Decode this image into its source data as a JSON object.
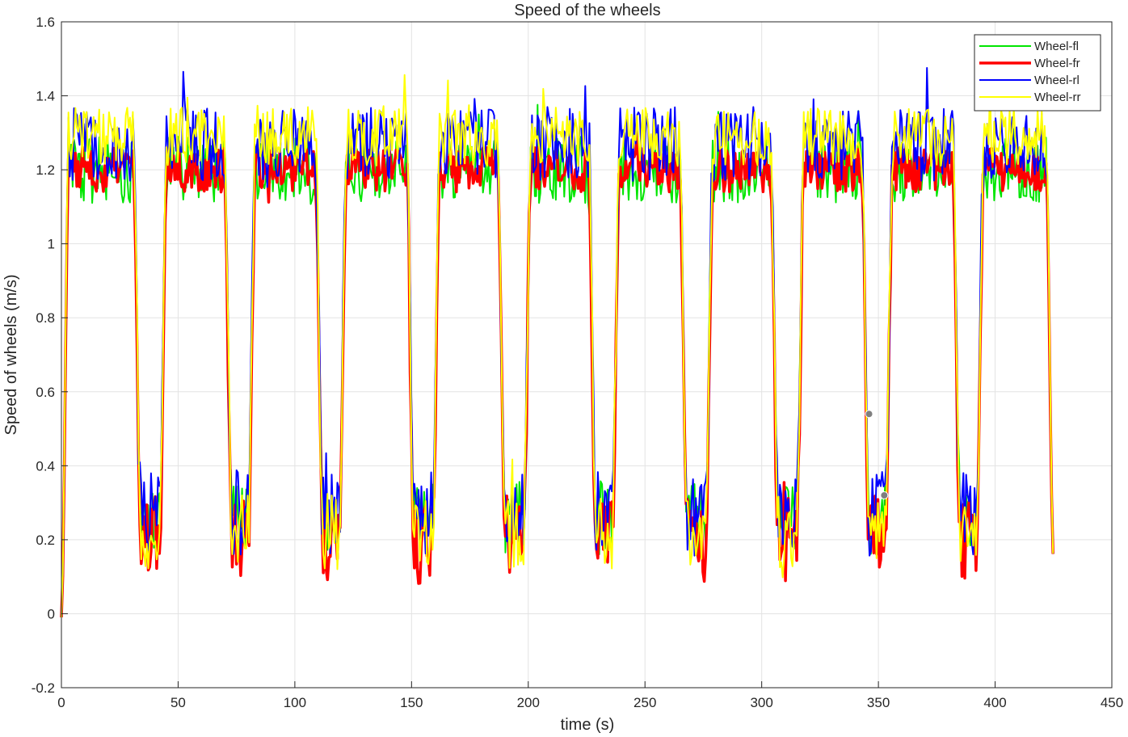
{
  "chart_data": {
    "type": "line",
    "title": "Speed of the wheels",
    "xlabel": "time (s)",
    "ylabel": "Speed of wheels (m/s)",
    "xlim": [
      0,
      450
    ],
    "ylim": [
      -0.2,
      1.6
    ],
    "xticks": [
      0,
      50,
      100,
      150,
      200,
      250,
      300,
      350,
      400,
      450
    ],
    "yticks": [
      -0.2,
      0,
      0.2,
      0.4,
      0.6,
      0.8,
      1,
      1.2,
      1.4,
      1.6
    ],
    "grid": true,
    "legend_position": "top-right",
    "series": [
      {
        "name": "Wheel-fl",
        "color": "#00e600",
        "line_width": 2,
        "high_level": 1.2,
        "low_level": 0.26,
        "high_spread": 0.09,
        "low_spread": 0.1
      },
      {
        "name": "Wheel-fr",
        "color": "#ff0000",
        "line_width": 3.5,
        "high_level": 1.2,
        "low_level": 0.2,
        "high_spread": 0.06,
        "low_spread": 0.12
      },
      {
        "name": "Wheel-rl",
        "color": "#0000ff",
        "line_width": 2,
        "high_level": 1.27,
        "low_level": 0.27,
        "high_spread": 0.1,
        "low_spread": 0.12
      },
      {
        "name": "Wheel-rr",
        "color": "#ffff00",
        "line_width": 2,
        "high_level": 1.29,
        "low_level": 0.22,
        "high_spread": 0.08,
        "low_spread": 0.1
      }
    ],
    "profile": {
      "start": 0,
      "end": 425,
      "time_step": 0.6,
      "start_value": -0.01,
      "end_value": 0.15,
      "low_windows": [
        [
          34,
          42
        ],
        [
          73,
          80
        ],
        [
          112,
          119
        ],
        [
          151,
          159
        ],
        [
          190,
          198
        ],
        [
          229,
          236
        ],
        [
          268,
          276
        ],
        [
          307,
          315
        ],
        [
          346,
          353
        ],
        [
          385,
          392
        ]
      ]
    },
    "data_markers": [
      {
        "x": 346,
        "y": 0.54
      },
      {
        "x": 352.5,
        "y": 0.32
      }
    ]
  }
}
